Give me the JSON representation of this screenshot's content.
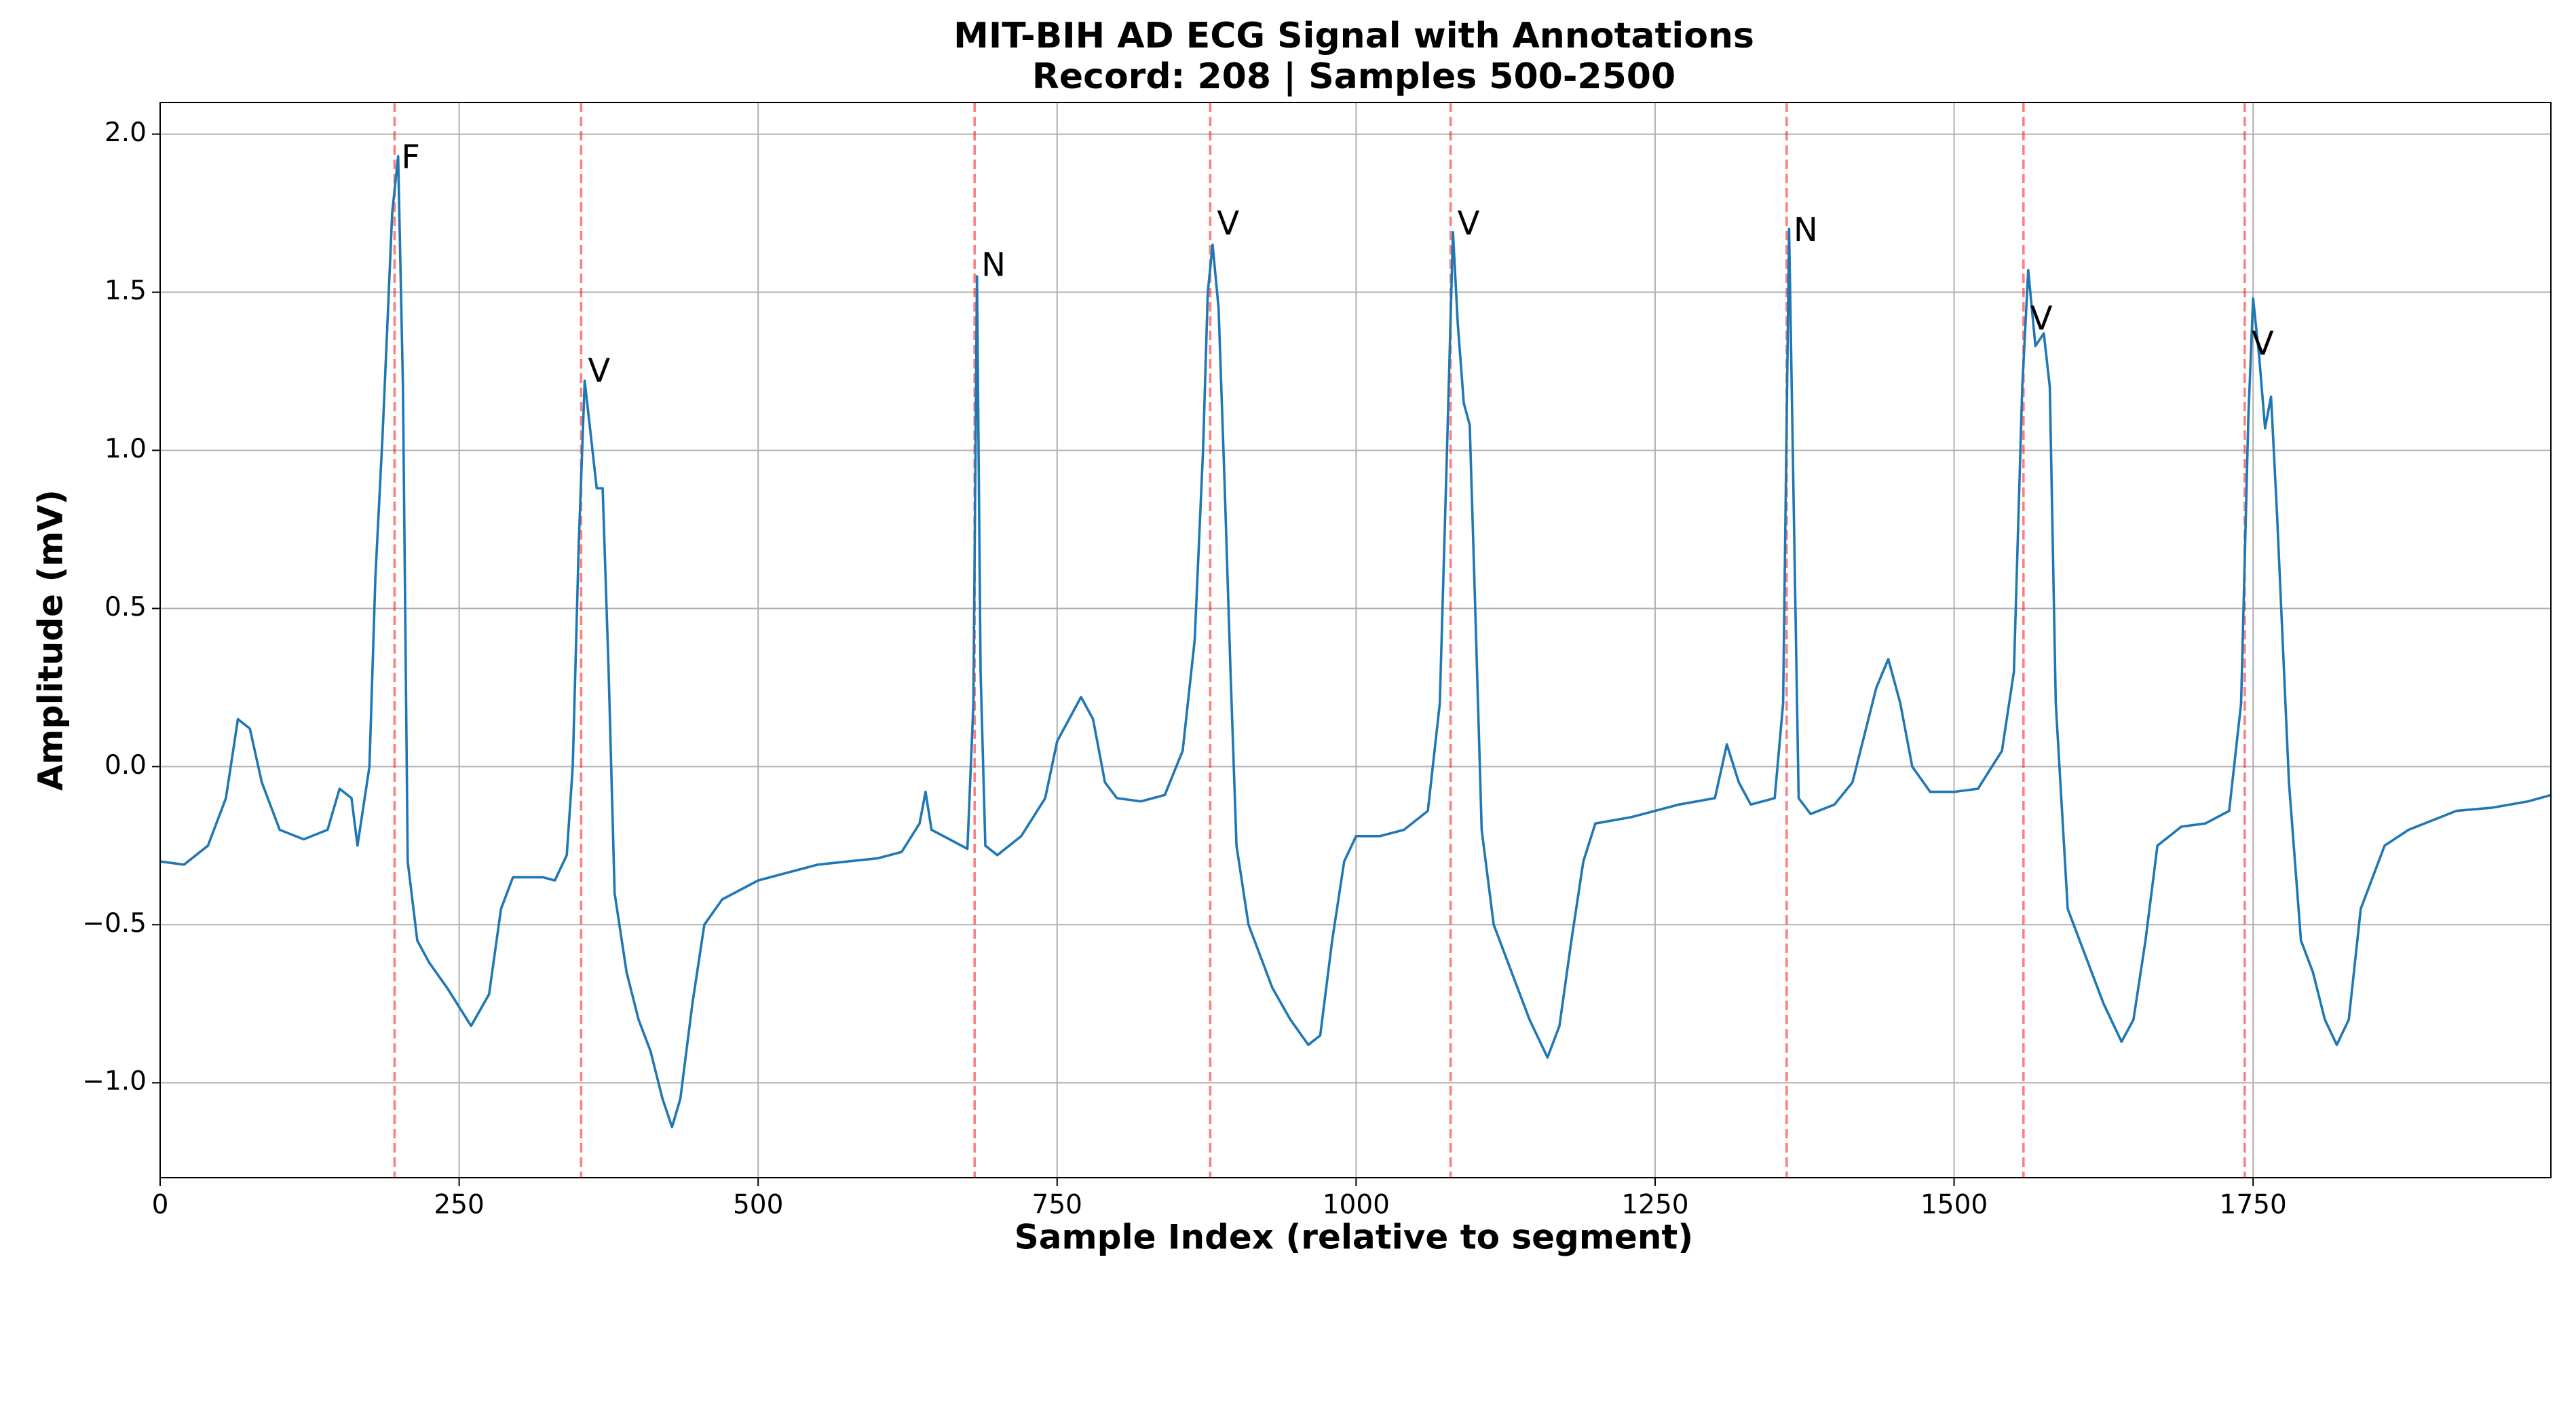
{
  "chart_data": {
    "type": "line",
    "title": "MIT-BIH AD ECG Signal with Annotations",
    "subtitle": "Record: 208 | Samples 500-2500",
    "x_label": "Sample Index (relative to segment)",
    "y_label": "Amplitude (mV)",
    "xlim": [
      0,
      1999
    ],
    "ylim": [
      -1.3,
      2.1
    ],
    "xticks": [
      0,
      250,
      500,
      750,
      1000,
      1250,
      1500,
      1750
    ],
    "yticks": [
      {
        "value": -1,
        "label": "−1.0"
      },
      {
        "value": -0.5,
        "label": "−0.5"
      },
      {
        "value": 0,
        "label": "0.0"
      },
      0.5,
      {
        "value": 1,
        "label": "1.0"
      },
      1.5,
      {
        "value": 2,
        "label": "2.0"
      }
    ],
    "grid": true,
    "color": "#1f77b4",
    "annotation_color": "#ff0000",
    "x": [
      0,
      20,
      40,
      55,
      65,
      75,
      85,
      100,
      120,
      140,
      150,
      160,
      165,
      175,
      180,
      186,
      190,
      194,
      199,
      203,
      207,
      215,
      225,
      240,
      260,
      275,
      285,
      295,
      320,
      330,
      340,
      345,
      350,
      355,
      360,
      365,
      370,
      375,
      380,
      390,
      400,
      410,
      420,
      428,
      435,
      445,
      455,
      470,
      500,
      550,
      600,
      620,
      635,
      640,
      645,
      660,
      675,
      680,
      683,
      686,
      690,
      700,
      720,
      740,
      750,
      760,
      770,
      780,
      790,
      800,
      820,
      840,
      855,
      865,
      872,
      876,
      880,
      885,
      890,
      895,
      900,
      910,
      920,
      930,
      945,
      960,
      970,
      980,
      990,
      1000,
      1020,
      1040,
      1060,
      1070,
      1076,
      1081,
      1085,
      1090,
      1095,
      1100,
      1105,
      1115,
      1130,
      1145,
      1160,
      1170,
      1180,
      1190,
      1200,
      1230,
      1270,
      1300,
      1310,
      1320,
      1330,
      1350,
      1357,
      1362,
      1366,
      1370,
      1380,
      1400,
      1415,
      1425,
      1435,
      1445,
      1455,
      1465,
      1480,
      1500,
      1520,
      1530,
      1540,
      1550,
      1557,
      1562,
      1568,
      1575,
      1580,
      1585,
      1595,
      1610,
      1625,
      1640,
      1650,
      1660,
      1670,
      1690,
      1710,
      1730,
      1740,
      1746,
      1750,
      1755,
      1760,
      1765,
      1770,
      1780,
      1790,
      1800,
      1810,
      1820,
      1830,
      1840,
      1860,
      1880,
      1900,
      1920,
      1950,
      1980,
      1999
    ],
    "values": [
      -0.3,
      -0.31,
      -0.25,
      -0.1,
      0.15,
      0.12,
      -0.05,
      -0.2,
      -0.23,
      -0.2,
      -0.07,
      -0.1,
      -0.25,
      0.0,
      0.6,
      1.05,
      1.4,
      1.75,
      1.93,
      1.2,
      -0.3,
      -0.55,
      -0.62,
      -0.7,
      -0.82,
      -0.72,
      -0.45,
      -0.35,
      -0.35,
      -0.36,
      -0.28,
      0.0,
      0.7,
      1.22,
      1.05,
      0.88,
      0.88,
      0.3,
      -0.4,
      -0.65,
      -0.8,
      -0.9,
      -1.05,
      -1.14,
      -1.05,
      -0.75,
      -0.5,
      -0.42,
      -0.36,
      -0.31,
      -0.29,
      -0.27,
      -0.18,
      -0.08,
      -0.2,
      -0.23,
      -0.26,
      0.2,
      1.55,
      0.3,
      -0.25,
      -0.28,
      -0.22,
      -0.1,
      0.08,
      0.15,
      0.22,
      0.15,
      -0.05,
      -0.1,
      -0.11,
      -0.09,
      0.05,
      0.4,
      1.0,
      1.5,
      1.65,
      1.45,
      0.9,
      0.3,
      -0.25,
      -0.5,
      -0.6,
      -0.7,
      -0.8,
      -0.88,
      -0.85,
      -0.55,
      -0.3,
      -0.22,
      -0.22,
      -0.2,
      -0.14,
      0.2,
      1.0,
      1.69,
      1.4,
      1.15,
      1.08,
      0.45,
      -0.2,
      -0.5,
      -0.65,
      -0.8,
      -0.92,
      -0.82,
      -0.55,
      -0.3,
      -0.18,
      -0.16,
      -0.12,
      -0.1,
      0.07,
      -0.05,
      -0.12,
      -0.1,
      0.2,
      1.7,
      0.8,
      -0.1,
      -0.15,
      -0.12,
      -0.05,
      0.1,
      0.25,
      0.34,
      0.2,
      0.0,
      -0.08,
      -0.08,
      -0.07,
      -0.01,
      0.05,
      0.3,
      1.2,
      1.57,
      1.33,
      1.37,
      1.2,
      0.2,
      -0.45,
      -0.6,
      -0.75,
      -0.87,
      -0.8,
      -0.55,
      -0.25,
      -0.19,
      -0.18,
      -0.14,
      0.2,
      1.1,
      1.48,
      1.3,
      1.07,
      1.17,
      0.8,
      -0.05,
      -0.55,
      -0.65,
      -0.8,
      -0.88,
      -0.8,
      -0.45,
      -0.25,
      -0.2,
      -0.17,
      -0.14,
      -0.13,
      -0.11,
      -0.09
    ],
    "annotations": [
      {
        "sample": 196,
        "label": "F",
        "value": 1.92
      },
      {
        "sample": 352,
        "label": "V",
        "value": 1.245
      },
      {
        "sample": 681,
        "label": "N",
        "value": 1.58
      },
      {
        "sample": 878,
        "label": "V",
        "value": 1.71
      },
      {
        "sample": 1079,
        "label": "V",
        "value": 1.71
      },
      {
        "sample": 1360,
        "label": "N",
        "value": 1.69
      },
      {
        "sample": 1558,
        "label": "V",
        "value": 1.41
      },
      {
        "sample": 1743,
        "label": "V",
        "value": 1.33
      }
    ]
  }
}
